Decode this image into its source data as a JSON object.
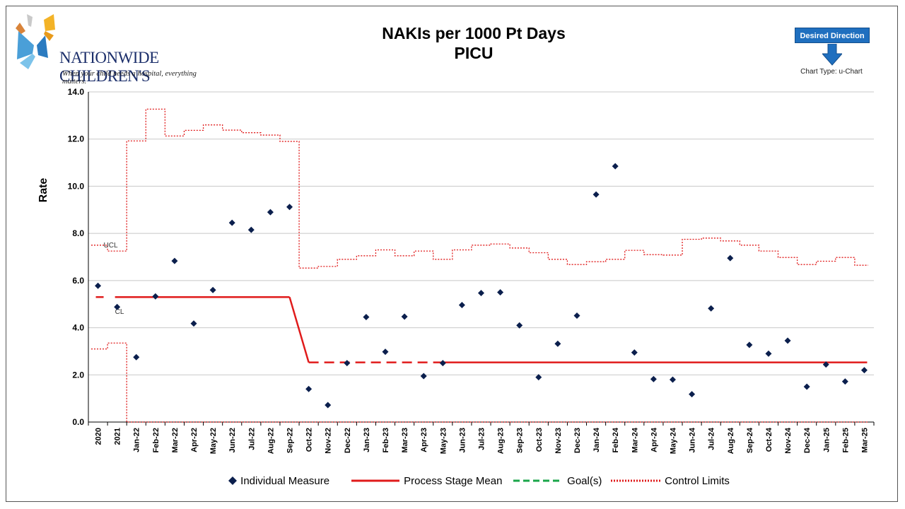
{
  "logo": {
    "name": "NATIONWIDE CHILDREN'S",
    "tagline": "When your child needs a hospital, everything matters."
  },
  "desired_direction": {
    "label": "Desired Direction",
    "arrow_icon": "down-arrow-icon"
  },
  "chart_type_label": "Chart Type: u-Chart",
  "colors": {
    "points": "#0b1f4d",
    "mean": "#e01b1b",
    "control": "#e01b1b",
    "goal": "#1aa64a",
    "desired_box": "#1f6fbf",
    "grid": "#c8c8c8"
  },
  "chart_data": {
    "type": "scatter",
    "title": "NAKIs per 1000 Pt Days",
    "subtitle": "PICU",
    "ylabel": "Rate",
    "xlabel": "",
    "ylim": [
      0,
      14
    ],
    "yticks": [
      "0.0",
      "2.0",
      "4.0",
      "6.0",
      "8.0",
      "10.0",
      "12.0",
      "14.0"
    ],
    "grid": true,
    "legend_position": "bottom",
    "categories": [
      "2020",
      "2021",
      "Jan-22",
      "Feb-22",
      "Mar-22",
      "Apr-22",
      "May-22",
      "Jun-22",
      "Jul-22",
      "Aug-22",
      "Sep-22",
      "Oct-22",
      "Nov-22",
      "Dec-22",
      "Jan-23",
      "Feb-23",
      "Mar-23",
      "Apr-23",
      "May-23",
      "Jun-23",
      "Jul-23",
      "Aug-23",
      "Sep-23",
      "Oct-23",
      "Nov-23",
      "Dec-23",
      "Jan-24",
      "Feb-24",
      "Mar-24",
      "Apr-24",
      "May-24",
      "Jun-24",
      "Jul-24",
      "Aug-24",
      "Sep-24",
      "Oct-24",
      "Nov-24",
      "Dec-24",
      "Jan-25",
      "Feb-25",
      "Mar-25"
    ],
    "series": [
      {
        "name": "Individual Measure",
        "marker": "diamond",
        "values": [
          5.78,
          4.88,
          2.75,
          5.33,
          6.83,
          4.18,
          5.6,
          8.45,
          8.15,
          8.9,
          9.12,
          1.4,
          0.72,
          2.5,
          4.45,
          2.98,
          4.47,
          1.95,
          2.5,
          4.96,
          5.47,
          5.5,
          4.1,
          1.9,
          3.32,
          4.51,
          9.65,
          10.85,
          2.95,
          1.82,
          1.8,
          1.18,
          4.82,
          6.95,
          3.27,
          2.9,
          3.45,
          1.5,
          2.44,
          1.72,
          2.2
        ]
      },
      {
        "name": "Process Stage Mean",
        "values": [
          5.3,
          5.3,
          5.3,
          5.3,
          5.3,
          5.3,
          5.3,
          5.3,
          5.3,
          5.3,
          5.3,
          2.53,
          2.53,
          2.53,
          2.53,
          2.53,
          2.53,
          2.53,
          2.53,
          2.53,
          2.53,
          2.53,
          2.53,
          2.53,
          2.53,
          2.53,
          2.53,
          2.53,
          2.53,
          2.53,
          2.53,
          2.53,
          2.53,
          2.53,
          2.53,
          2.53,
          2.53,
          2.53,
          2.53,
          2.53,
          2.53
        ]
      },
      {
        "name": "Goal(s)",
        "values": []
      },
      {
        "name": "Control Limits",
        "ucl": [
          7.5,
          7.25,
          11.92,
          13.27,
          12.13,
          12.37,
          12.6,
          12.38,
          12.27,
          12.17,
          11.9,
          6.53,
          6.6,
          6.9,
          7.05,
          7.3,
          7.05,
          7.25,
          6.9,
          7.3,
          7.5,
          7.55,
          7.38,
          7.18,
          6.9,
          6.68,
          6.8,
          6.9,
          7.28,
          7.1,
          7.08,
          7.75,
          7.8,
          7.68,
          7.5,
          7.25,
          6.98,
          6.68,
          6.82,
          6.98,
          6.65
        ],
        "lcl": [
          3.1,
          3.35,
          0,
          0,
          0,
          0,
          0,
          0,
          0,
          0,
          0,
          0,
          0,
          0,
          0,
          0,
          0,
          0,
          0,
          0,
          0,
          0,
          0,
          0,
          0,
          0,
          0,
          0,
          0,
          0,
          0,
          0,
          0,
          0,
          0,
          0,
          0,
          0,
          0,
          0,
          0
        ]
      }
    ],
    "annotations": {
      "ucl_label": "UCL",
      "cl_label": "CL"
    }
  }
}
